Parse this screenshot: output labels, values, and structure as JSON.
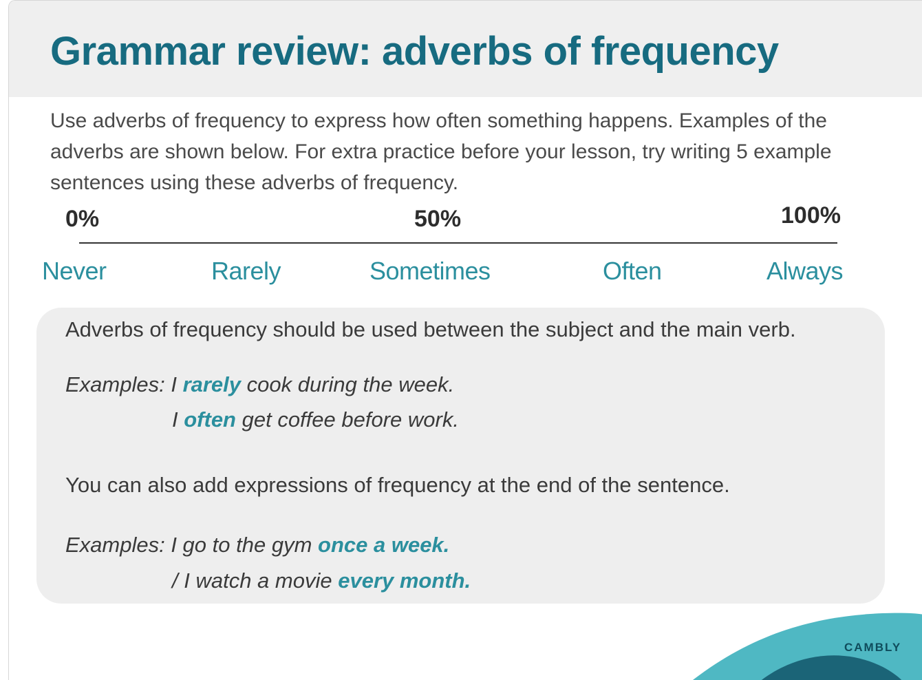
{
  "slide": {
    "title": "Grammar review: adverbs of frequency",
    "intro": "Use adverbs of frequency to express how often something happens. Examples of the adverbs are shown below. For extra practice before your lesson, try writing 5 example sentences using these adverbs of frequency."
  },
  "scale": {
    "percent_labels": [
      "0%",
      "50%",
      "100%"
    ],
    "adverbs": [
      "Never",
      "Rarely",
      "Sometimes",
      "Often",
      "Always"
    ]
  },
  "rules": {
    "rule1": "Adverbs of frequency should be used between the subject and the main verb.",
    "example1": {
      "prefix": "Examples: I ",
      "highlight": "rarely",
      "suffix": " cook during the week."
    },
    "example2": {
      "prefix": "I ",
      "highlight": "often",
      "suffix": " get coffee before work."
    },
    "rule2": "You can also add expressions of frequency at the end of the sentence.",
    "example3": {
      "prefix": "Examples: I go to the gym ",
      "highlight": "once a week."
    },
    "example4": {
      "prefix": "/ I watch a movie ",
      "highlight": "every month."
    }
  },
  "brand": {
    "name": "CAMBLY"
  },
  "colors": {
    "title": "#176b80",
    "accent": "#2b8f9e",
    "header_bg": "#efefef",
    "box_bg": "#eeeeee",
    "logo_light": "#4fb8c3",
    "logo_dark": "#1b6477"
  }
}
